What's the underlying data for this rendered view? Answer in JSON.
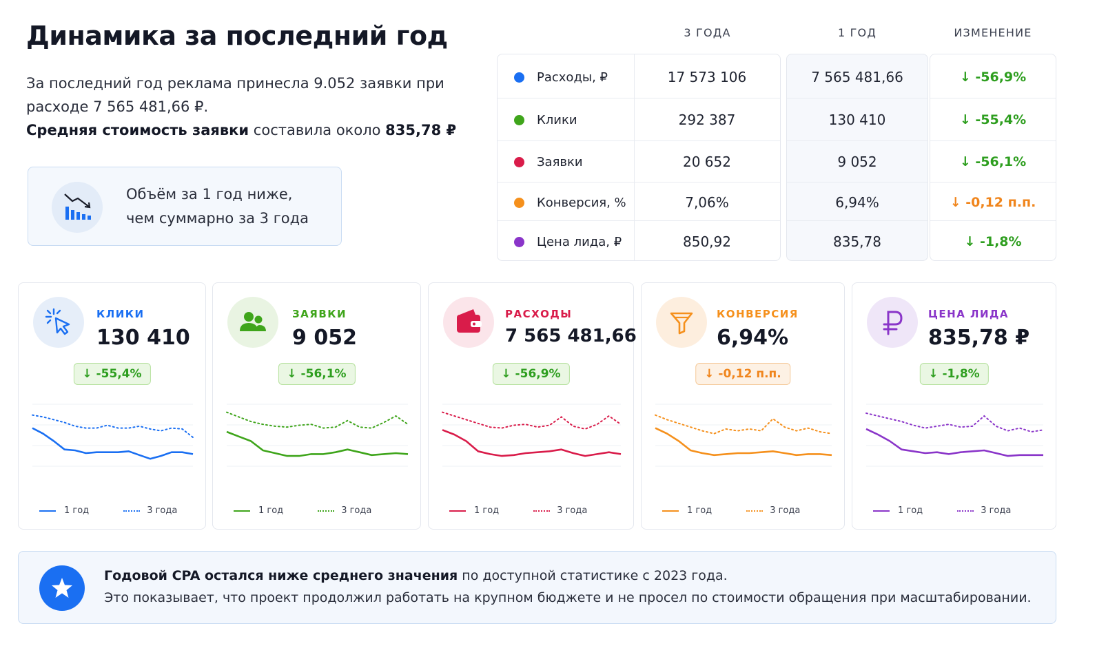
{
  "header": {
    "title": "Динамика за последний год",
    "intro_line1": "За последний год реклама принесла 9.052 заявки при",
    "intro_line2": "расходе 7 565 481,66 ₽.",
    "intro_bold": "Средняя стоимость заявки",
    "intro_mid": " составила около ",
    "intro_value": "835,78 ₽"
  },
  "callout": {
    "icon": "chart-down-icon",
    "line1": "Объём за 1 год ниже,",
    "line2": "чем суммарно за 3 года"
  },
  "table": {
    "col_3y": "3 ГОДА",
    "col_1y": "1 ГОД",
    "col_change": "ИЗМЕНЕНИЕ",
    "rows": [
      {
        "label": "Расходы, ₽",
        "v3": "17 573 106",
        "v1": "7 565 481,66",
        "change": "↓ -56,9%",
        "dot": "#1a6ff2",
        "change_color": "#2e9e1f"
      },
      {
        "label": "Клики",
        "v3": "292 387",
        "v1": "130 410",
        "change": "↓ -55,4%",
        "dot": "#3fa51b",
        "change_color": "#2e9e1f"
      },
      {
        "label": "Заявки",
        "v3": "20 652",
        "v1": "9 052",
        "change": "↓ -56,1%",
        "dot": "#d91c4a",
        "change_color": "#2e9e1f"
      },
      {
        "label": "Конверсия, %",
        "v3": "7,06%",
        "v1": "6,94%",
        "change": "↓ -0,12 п.п.",
        "dot": "#f5901c",
        "change_color": "#f0851c"
      },
      {
        "label": "Цена лида, ₽",
        "v3": "850,92",
        "v1": "835,78",
        "change": "↓ -1,8%",
        "dot": "#8a35c9",
        "change_color": "#2e9e1f"
      }
    ]
  },
  "cards": [
    {
      "label": "КЛИКИ",
      "value": "130 410",
      "badge": "↓ -55,4%",
      "color": "#1a6ff2",
      "icon_bg": "#e6eef9",
      "icon": "cursor-click-icon",
      "badge_bg": "#eaf7e3",
      "badge_border": "#b5e19d",
      "badge_color": "#2e9e1f",
      "legend_1y": "1 год",
      "legend_3y": "3 года",
      "series_1y": [
        44,
        38,
        30,
        21,
        20,
        17,
        18,
        18,
        18,
        19,
        15,
        11,
        14,
        18,
        18,
        16
      ],
      "series_3y": [
        58,
        56,
        53,
        50,
        46,
        44,
        44,
        47,
        44,
        44,
        46,
        43,
        41,
        44,
        43,
        34
      ]
    },
    {
      "label": "ЗАЯВКИ",
      "value": "9 052",
      "badge": "↓ -56,1%",
      "color": "#3fa51b",
      "icon_bg": "#e9f4e2",
      "icon": "users-icon",
      "badge_bg": "#eaf7e3",
      "badge_border": "#b5e19d",
      "badge_color": "#2e9e1f",
      "legend_1y": "1 год",
      "legend_3y": "3 года",
      "series_1y": [
        40,
        35,
        30,
        20,
        17,
        14,
        14,
        16,
        16,
        18,
        21,
        18,
        15,
        16,
        17,
        16
      ],
      "series_3y": [
        61,
        56,
        51,
        48,
        46,
        45,
        47,
        48,
        44,
        45,
        52,
        45,
        44,
        50,
        57,
        48
      ]
    },
    {
      "label": "РАСХОДЫ",
      "value": "7 565 481,66 ₽",
      "badge": "↓ -56,9%",
      "color": "#d91c4a",
      "icon_bg": "#fbe5ea",
      "icon": "wallet-icon",
      "badge_bg": "#eaf7e3",
      "badge_border": "#b5e19d",
      "badge_color": "#2e9e1f",
      "legend_1y": "1 год",
      "legend_3y": "3 года",
      "series_1y": [
        42,
        37,
        30,
        19,
        16,
        14,
        15,
        17,
        18,
        19,
        21,
        17,
        14,
        16,
        18,
        16
      ],
      "series_3y": [
        61,
        57,
        53,
        49,
        45,
        44,
        47,
        48,
        45,
        47,
        56,
        46,
        43,
        48,
        57,
        48
      ]
    },
    {
      "label": "КОНВЕРСИЯ",
      "value": "6,94%",
      "badge": "↓ -0,12 п.п.",
      "color": "#f5901c",
      "icon_bg": "#fdeede",
      "icon": "funnel-icon",
      "badge_bg": "#fdf1e4",
      "badge_border": "#f5c999",
      "badge_color": "#f0851c",
      "legend_1y": "1 год",
      "legend_3y": "3 года",
      "series_1y": [
        44,
        38,
        30,
        20,
        17,
        15,
        16,
        17,
        17,
        18,
        19,
        17,
        15,
        16,
        16,
        15
      ],
      "series_3y": [
        58,
        53,
        49,
        45,
        41,
        38,
        43,
        41,
        43,
        41,
        54,
        45,
        41,
        44,
        40,
        38
      ]
    },
    {
      "label": "ЦЕНА ЛИДА",
      "value": "835,78 ₽",
      "badge": "↓ -1,8%",
      "color": "#8a35c9",
      "icon_bg": "#efe6f8",
      "icon": "ruble-icon",
      "badge_bg": "#eaf7e3",
      "badge_border": "#b5e19d",
      "badge_color": "#2e9e1f",
      "legend_1y": "1 год",
      "legend_3y": "3 года",
      "series_1y": [
        43,
        37,
        30,
        21,
        19,
        17,
        18,
        16,
        18,
        19,
        20,
        17,
        14,
        15,
        15,
        15
      ],
      "series_3y": [
        60,
        57,
        54,
        51,
        47,
        44,
        46,
        48,
        45,
        46,
        57,
        46,
        41,
        44,
        40,
        42
      ]
    }
  ],
  "footer": {
    "icon": "star-icon",
    "bold": "Годовой CPA остался ниже среднего значения",
    "rest": " по доступной статистике с 2023 года.",
    "line2": "Это показывает, что проект продолжил работать на крупном бюджете и не просел по стоимости обращения при масштабировании."
  }
}
